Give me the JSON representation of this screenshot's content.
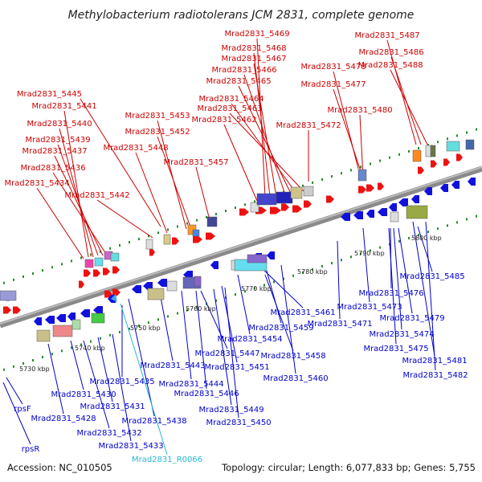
{
  "title": "Methylobacterium radiotolerans JCM 2831, complete genome",
  "footer": {
    "accession": "Accession: NC_010505",
    "stats": "Topology: circular; Length: 6,077,833 bp; Genes: 5,755"
  },
  "colors": {
    "top_label": "#cc0000",
    "bottom_label": "#0000cc",
    "rna_label": "#29b6d6",
    "forward_gene": "#ee1111",
    "reverse_gene": "#1111dd",
    "backbone": "#8a8a8a",
    "tick": "#2a8a2a"
  },
  "kbp_labels": [
    "5730 kbp",
    "5740 kbp",
    "5750 kbp",
    "5760 kbp",
    "5770 kbp",
    "5780 kbp",
    "5790 kbp",
    "5800 kbp"
  ],
  "top_labels": [
    "Mrad2831_5469",
    "Mrad2831_5487",
    "Mrad2831_5468",
    "Mrad2831_5486",
    "Mrad2831_5467",
    "Mrad2831_5488",
    "Mrad2831_5478",
    "Mrad2831_5466",
    "Mrad2831_5465",
    "Mrad2831_5477",
    "Mrad2831_5445",
    "Mrad2831_5464",
    "Mrad2831_5441",
    "Mrad2831_5463",
    "Mrad2831_5453",
    "Mrad2831_5480",
    "Mrad2831_5462",
    "Mrad2831_5440",
    "Mrad2831_5472",
    "Mrad2831_5452",
    "Mrad2831_5439",
    "Mrad2831_5448",
    "Mrad2831_5437",
    "Mrad2831_5457",
    "Mrad2831_5436",
    "Mrad2831_5434",
    "Mrad2831_5442"
  ],
  "bottom_labels": [
    "Mrad2831_5485",
    "Mrad2831_5476",
    "Mrad2831_5461",
    "Mrad2831_5473",
    "Mrad2831_5471",
    "Mrad2831_5479",
    "Mrad2831_5459",
    "Mrad2831_5474",
    "Mrad2831_5454",
    "Mrad2831_5475",
    "Mrad2831_5447",
    "Mrad2831_5458",
    "Mrad2831_5443",
    "Mrad2831_5481",
    "Mrad2831_5451",
    "Mrad2831_5482",
    "Mrad2831_5460",
    "Mrad2831_5435",
    "Mrad2831_5444",
    "Mrad2831_5446",
    "Mrad2831_5430",
    "Mrad2831_5431",
    "Mrad2831_5449",
    "rpsF",
    "Mrad2831_5428",
    "Mrad2831_5438",
    "Mrad2831_5450",
    "Mrad2831_5432",
    "Mrad2831_5433",
    "rpsR"
  ],
  "rna_labels": [
    "Mrad2831_R0066"
  ]
}
